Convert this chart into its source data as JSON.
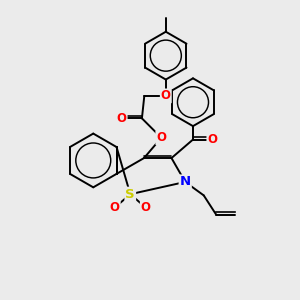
{
  "bg_color": "#ebebeb",
  "bond_color": "#000000",
  "bond_width": 1.4,
  "atom_colors": {
    "O": "#ff0000",
    "N": "#0000ff",
    "S": "#cccc00"
  },
  "font_size": 8.5
}
